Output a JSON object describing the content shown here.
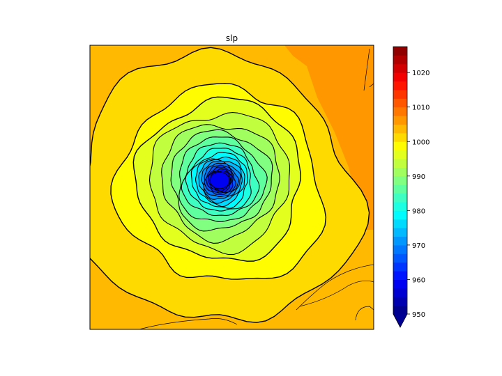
{
  "chart_data": {
    "type": "contour",
    "title": "slp",
    "xlabel": "",
    "ylabel": "",
    "colormap": "jet",
    "levels": {
      "min": 950,
      "max": 1027.5,
      "step": 2.5
    },
    "extend": "min",
    "colorbar": {
      "ticks": [
        950,
        960,
        970,
        980,
        990,
        1000,
        1010,
        1020
      ],
      "tick_labels": [
        "950",
        "960",
        "970",
        "980",
        "990",
        "1000",
        "1010",
        "1020"
      ],
      "placement": "right"
    },
    "field": {
      "center_min": 957.5,
      "contour_levels_drawn": [
        1002.5,
        1000,
        997.5,
        995,
        992.5,
        990,
        987.5,
        985,
        982.5,
        980,
        977.5,
        975,
        972.5,
        970,
        967.5,
        965,
        962.5,
        960
      ],
      "background_level": 1002.5,
      "corner_level": 1005
    },
    "coastlines": true,
    "grid": false
  }
}
